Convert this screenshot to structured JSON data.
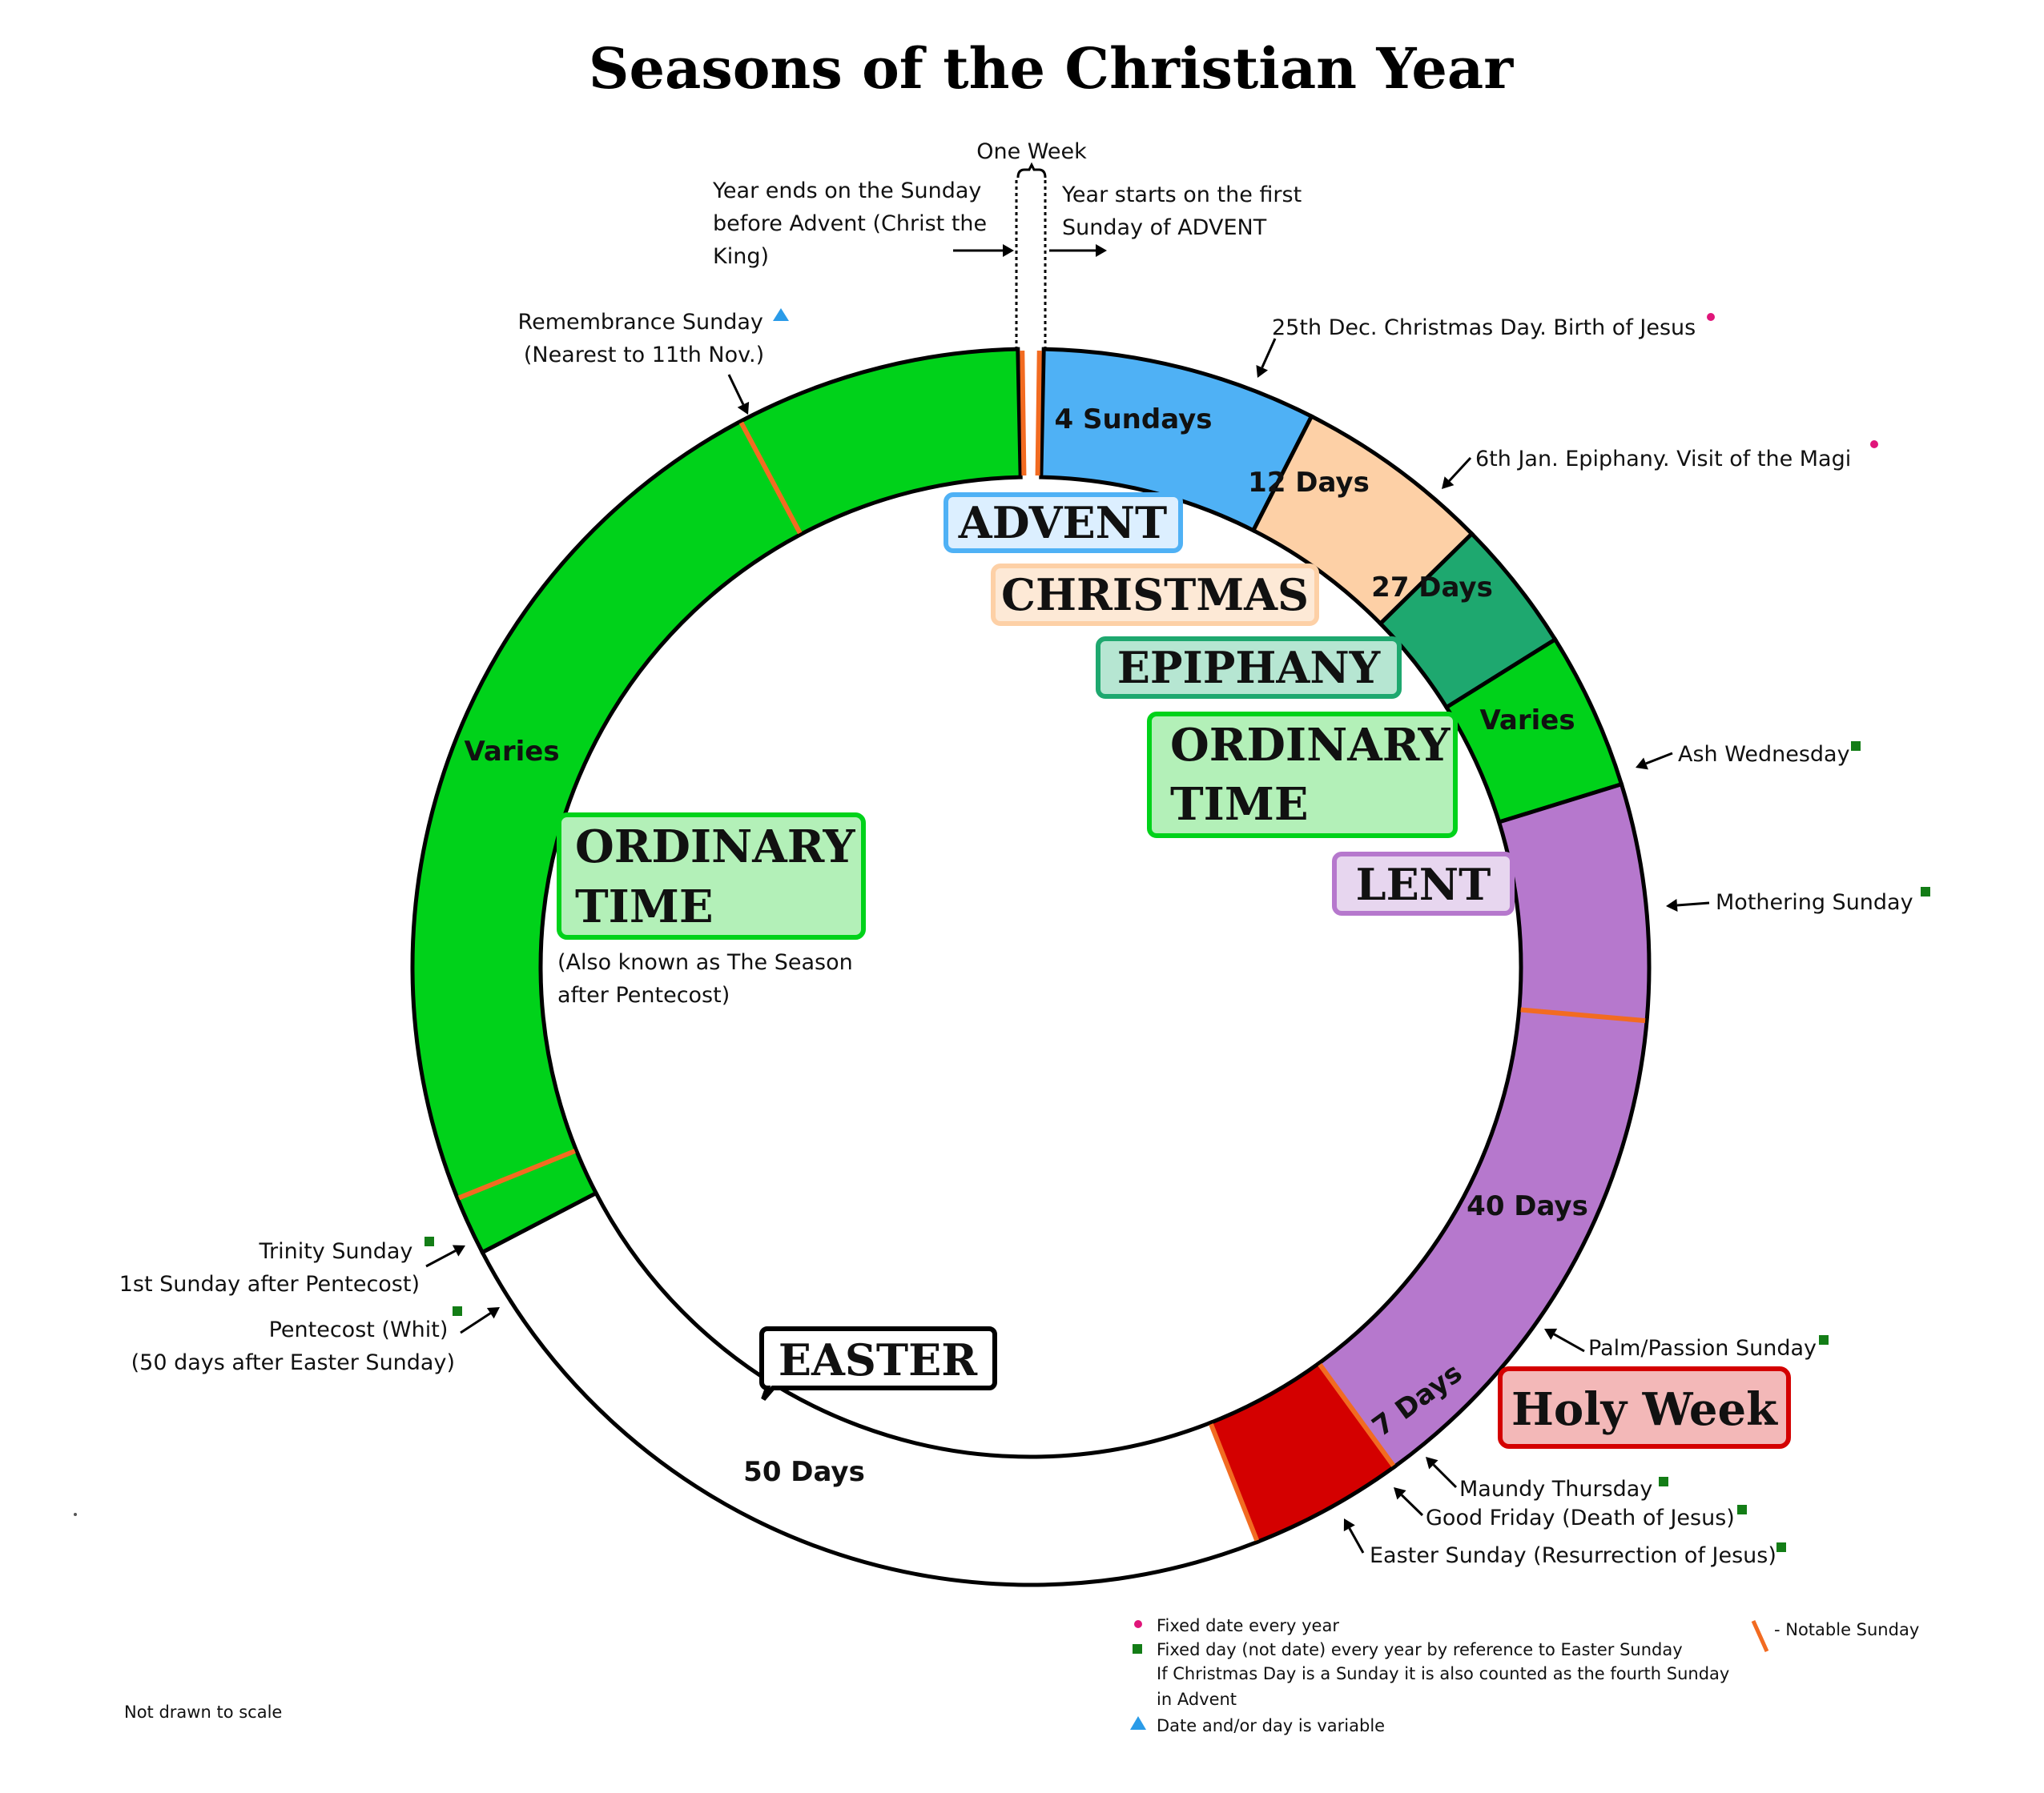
{
  "title": "Seasons of the Christian Year",
  "top": {
    "one_week": "One Week",
    "year_ends": [
      "Year ends on the Sunday",
      "before Advent (Christ the",
      "King)"
    ],
    "year_starts": [
      "Year starts on the first",
      "Sunday of ADVENT"
    ]
  },
  "segments": {
    "advent": "4 Sundays",
    "christmas": "12 Days",
    "epiphany": "27 Days",
    "ordinary_short": "Varies",
    "lent": "40 Days",
    "holy_week": "7 Days",
    "easter": "50 Days",
    "ordinary_long": "Varies"
  },
  "seasons": {
    "advent": "ADVENT",
    "christmas": "CHRISTMAS",
    "epiphany": "EPIPHANY",
    "ordinary_short": [
      "ORDINARY",
      "TIME"
    ],
    "lent": "LENT",
    "holy_week": "Holy Week",
    "easter": "EASTER",
    "ordinary_long": [
      "ORDINARY",
      "TIME"
    ],
    "ordinary_long_note": [
      "(Also known as The Season",
      "after Pentecost)"
    ]
  },
  "events": {
    "christmas_day": "25th Dec. Christmas Day. Birth of Jesus",
    "epiphany_day": "6th Jan. Epiphany. Visit of the Magi",
    "ash_wednesday": "Ash Wednesday",
    "mothering_sunday": "Mothering Sunday",
    "palm_sunday": "Palm/Passion Sunday",
    "maundy_thursday": "Maundy Thursday",
    "good_friday": "Good Friday (Death of Jesus)",
    "easter_sunday": "Easter Sunday (Resurrection of Jesus)",
    "pentecost": [
      "Pentecost (Whit)",
      "(50 days after Easter Sunday)"
    ],
    "trinity": [
      "Trinity Sunday",
      "1st Sunday after Pentecost)"
    ],
    "remembrance": [
      "Remembrance Sunday",
      "(Nearest to 11th Nov.)"
    ]
  },
  "legend": {
    "fixed_date": "Fixed date every year",
    "fixed_day": "Fixed day (not date) every year by reference to Easter Sunday",
    "christmas_note": [
      "If Christmas Day is a Sunday it is also counted as the fourth Sunday",
      "in Advent"
    ],
    "variable": "Date and/or day is variable",
    "notable_sunday": "- Notable Sunday"
  },
  "footer": "Not drawn to scale",
  "colors": {
    "advent": "#4fb1f5",
    "christmas": "#fdd0a6",
    "epiphany": "#1ea86f",
    "ordinary": "#00d21a",
    "lent": "#b678cd",
    "holy_week": "#d40000",
    "easter": "#ffffff",
    "notable_sunday": "#f26b21",
    "fixed_date_marker": "#e0157a",
    "fixed_day_marker": "#137d16",
    "variable_marker": "#2a9be8"
  }
}
